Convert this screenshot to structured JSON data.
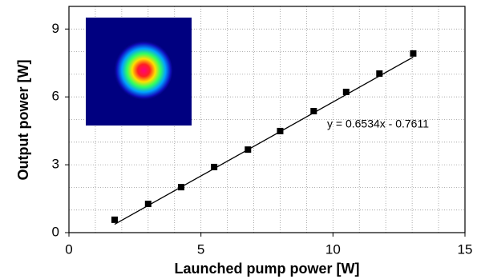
{
  "chart_data": {
    "type": "scatter",
    "x_label": "Launched pump power [W]",
    "y_label": "Output power [W]",
    "series": [
      {
        "color": "#000000",
        "x": [
          1.73,
          3.0,
          4.25,
          5.5,
          6.78,
          8.0,
          9.27,
          10.5,
          11.76,
          13.04
        ],
        "values": [
          0.57,
          1.27,
          2.01,
          2.9,
          3.67,
          4.49,
          5.37,
          6.22,
          7.03,
          7.92
        ]
      }
    ],
    "fit": {
      "label": "y = 0.6534x - 0.7611",
      "slope": 0.6534,
      "intercept": -0.7611,
      "x": [
        1.73,
        13.04
      ],
      "color": "#000000"
    },
    "xlim": [
      0,
      15
    ],
    "xticks": [
      0,
      5,
      10,
      15
    ],
    "ylim": [
      0,
      10
    ],
    "yticks": [
      0,
      3,
      6,
      9
    ],
    "xgrid": [
      1,
      2,
      3,
      4,
      5,
      6,
      7,
      8,
      9,
      10,
      11,
      12,
      13,
      14,
      15
    ],
    "ygrid": [
      1,
      2,
      3,
      4,
      5,
      6,
      7,
      8,
      9,
      10
    ],
    "grid": true
  }
}
